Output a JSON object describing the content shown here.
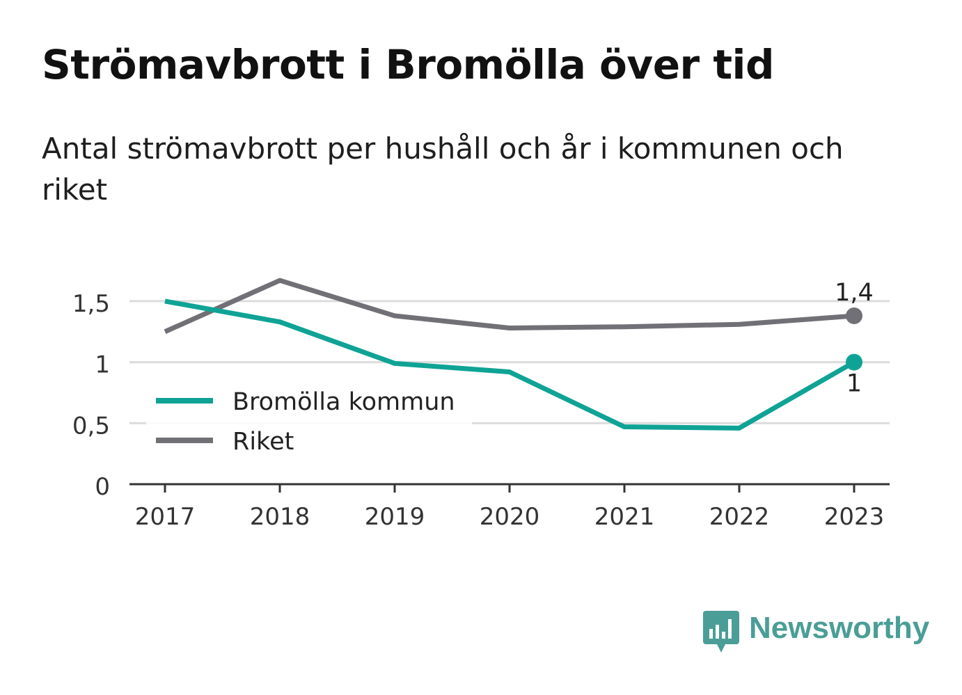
{
  "chart_data": {
    "type": "line",
    "title": "Strömavbrott i Bromölla över tid",
    "subtitle": "Antal strömavbrott per hushåll och år i kommunen och riket",
    "x": [
      "2017",
      "2018",
      "2019",
      "2020",
      "2021",
      "2022",
      "2023"
    ],
    "ylim": [
      0,
      1.75
    ],
    "yticks": [
      {
        "value": 0,
        "label": "0"
      },
      {
        "value": 0.5,
        "label": "0,5"
      },
      {
        "value": 1,
        "label": "1"
      },
      {
        "value": 1.5,
        "label": "1,5"
      }
    ],
    "grid": true,
    "legend_position": "bottom-left",
    "series": [
      {
        "name": "Bromölla kommun",
        "color": "#0fa395",
        "values": [
          1.5,
          1.33,
          0.99,
          0.92,
          0.47,
          0.46,
          1.0
        ],
        "end_label": "1"
      },
      {
        "name": "Riket",
        "color": "#707076",
        "values": [
          1.25,
          1.67,
          1.38,
          1.28,
          1.29,
          1.31,
          1.38
        ],
        "end_label": "1,4"
      }
    ]
  },
  "brand": {
    "name": "Newsworthy",
    "color": "#4a9e97"
  }
}
